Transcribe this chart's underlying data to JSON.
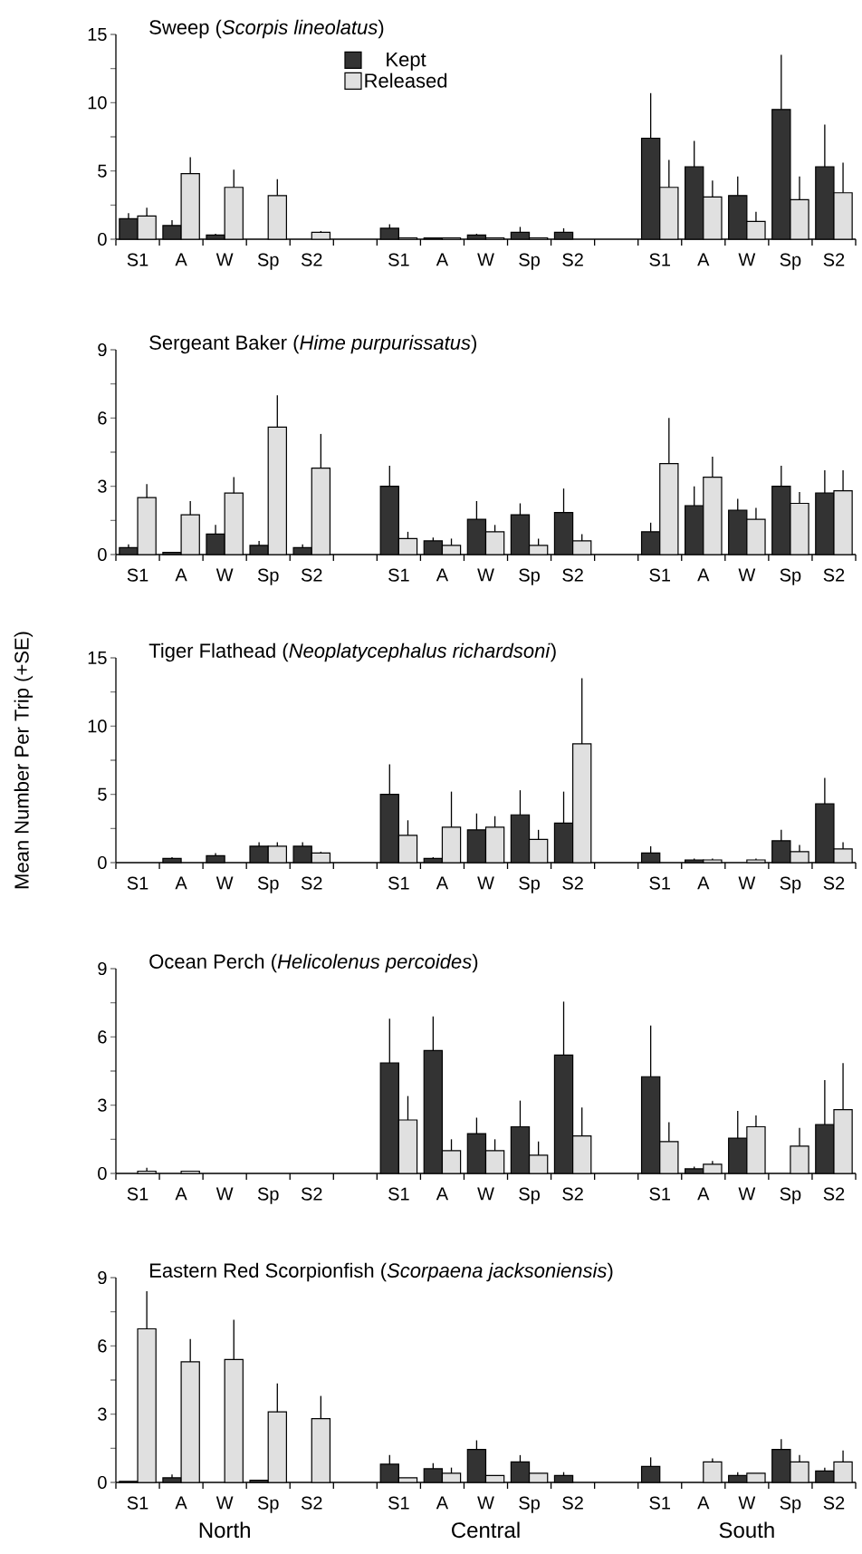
{
  "chart_data": [
    {
      "type": "bar",
      "title": "Sweep (*Scorpis lineolatus*)",
      "categories": [
        "S1",
        "A",
        "W",
        "Sp",
        "S2",
        null,
        "S1",
        "A",
        "W",
        "Sp",
        "S2",
        null,
        "S1",
        "A",
        "W",
        "Sp",
        "S2"
      ],
      "ylim": [
        0,
        15
      ],
      "yticks": [
        0,
        {
          "value": 2.5,
          "label": null
        },
        5,
        {
          "value": 7.5,
          "label": null
        },
        10,
        {
          "value": 12.5,
          "label": null
        },
        15
      ],
      "legend": "top",
      "grid": false,
      "series": [
        {
          "name": "Kept",
          "color": "#333333",
          "values": [
            1.5,
            1.0,
            0.3,
            0,
            0,
            null,
            0.8,
            0.1,
            0.3,
            0.5,
            0.5,
            null,
            7.4,
            5.3,
            3.2,
            9.5,
            5.3
          ],
          "errors": [
            [
              1.5,
              1.9
            ],
            [
              1.0,
              1.4
            ],
            [
              0.3,
              0.4
            ],
            null,
            null,
            null,
            [
              0.8,
              1.1
            ],
            null,
            [
              0.3,
              0.4
            ],
            [
              0.5,
              0.9
            ],
            [
              0.5,
              0.8
            ],
            null,
            [
              7.4,
              10.7
            ],
            [
              5.3,
              7.2
            ],
            [
              3.2,
              4.6
            ],
            [
              9.5,
              13.5
            ],
            [
              5.3,
              8.4
            ]
          ]
        },
        {
          "name": "Released",
          "color": "#e0e0e0",
          "values": [
            1.7,
            4.8,
            3.8,
            3.2,
            0.5,
            null,
            0.1,
            0.1,
            0.1,
            0.1,
            0,
            null,
            3.8,
            3.1,
            1.3,
            2.9,
            3.4
          ],
          "errors": [
            [
              1.7,
              2.3
            ],
            [
              4.8,
              6.0
            ],
            [
              3.8,
              5.1
            ],
            [
              3.2,
              4.4
            ],
            [
              0.5,
              0.6
            ],
            null,
            null,
            null,
            null,
            null,
            null,
            null,
            [
              3.8,
              5.8
            ],
            [
              3.1,
              4.3
            ],
            [
              1.3,
              2.0
            ],
            [
              2.9,
              4.6
            ],
            [
              3.4,
              5.6
            ]
          ]
        }
      ]
    },
    {
      "type": "bar",
      "title": "Sergeant Baker (*Hime purpurissatus*)",
      "categories": [
        "S1",
        "A",
        "W",
        "Sp",
        "S2",
        null,
        "S1",
        "A",
        "W",
        "Sp",
        "S2",
        null,
        "S1",
        "A",
        "W",
        "Sp",
        "S2"
      ],
      "ylim": [
        0,
        9
      ],
      "yticks": [
        0,
        {
          "value": 1.5,
          "label": null
        },
        3,
        {
          "value": 4.5,
          "label": null
        },
        6,
        {
          "value": 7.5,
          "label": null
        },
        9
      ],
      "grid": false,
      "series": [
        {
          "color": "#333333",
          "values": [
            0.3,
            0.1,
            0.9,
            0.4,
            0.3,
            null,
            3.0,
            0.6,
            1.55,
            1.75,
            1.85,
            null,
            1.0,
            2.15,
            1.95,
            3.0,
            2.7
          ],
          "errors": [
            [
              0.3,
              0.45
            ],
            null,
            [
              0.9,
              1.3
            ],
            [
              0.4,
              0.6
            ],
            [
              0.3,
              0.45
            ],
            null,
            [
              3.0,
              3.9
            ],
            [
              0.6,
              0.75
            ],
            [
              1.55,
              2.35
            ],
            [
              1.75,
              2.25
            ],
            [
              1.85,
              2.9
            ],
            null,
            [
              1.0,
              1.4
            ],
            [
              2.15,
              3.0
            ],
            [
              1.95,
              2.45
            ],
            [
              3.0,
              3.9
            ],
            [
              2.7,
              3.7
            ]
          ]
        },
        {
          "color": "#e0e0e0",
          "values": [
            2.5,
            1.75,
            2.7,
            5.6,
            3.8,
            null,
            0.7,
            0.4,
            1.0,
            0.4,
            0.6,
            null,
            4.0,
            3.4,
            1.55,
            2.25,
            2.8
          ],
          "errors": [
            [
              2.5,
              3.1
            ],
            [
              1.75,
              2.35
            ],
            [
              2.7,
              3.4
            ],
            [
              5.6,
              7.0
            ],
            [
              3.8,
              5.3
            ],
            null,
            [
              0.7,
              1.0
            ],
            [
              0.4,
              0.7
            ],
            [
              1.0,
              1.3
            ],
            [
              0.4,
              0.7
            ],
            [
              0.6,
              0.9
            ],
            null,
            [
              4.0,
              6.0
            ],
            [
              3.4,
              4.3
            ],
            [
              1.55,
              2.05
            ],
            [
              2.25,
              2.75
            ],
            [
              2.8,
              3.7
            ]
          ]
        }
      ]
    },
    {
      "type": "bar",
      "title": "Tiger Flathead (*Neoplatycephalus richardsoni*)",
      "ylabel": "Mean Number Per Trip (+SE)",
      "categories": [
        "S1",
        "A",
        "W",
        "Sp",
        "S2",
        null,
        "S1",
        "A",
        "W",
        "Sp",
        "S2",
        null,
        "S1",
        "A",
        "W",
        "Sp",
        "S2"
      ],
      "ylim": [
        0,
        15
      ],
      "yticks": [
        0,
        {
          "value": 2.5,
          "label": null
        },
        5,
        {
          "value": 7.5,
          "label": null
        },
        10,
        {
          "value": 12.5,
          "label": null
        },
        15
      ],
      "grid": false,
      "series": [
        {
          "color": "#333333",
          "values": [
            0,
            0.3,
            0.5,
            1.2,
            1.2,
            null,
            5.0,
            0.3,
            2.4,
            3.5,
            2.9,
            null,
            0.7,
            0.2,
            0,
            1.6,
            4.3
          ],
          "errors": [
            null,
            [
              0.3,
              0.4
            ],
            [
              0.5,
              0.7
            ],
            [
              1.2,
              1.5
            ],
            [
              1.2,
              1.5
            ],
            null,
            [
              5.0,
              7.2
            ],
            [
              0.3,
              0.4
            ],
            [
              2.4,
              3.6
            ],
            [
              3.5,
              5.3
            ],
            [
              2.9,
              5.2
            ],
            null,
            [
              0.7,
              1.2
            ],
            [
              0.2,
              0.3
            ],
            null,
            [
              1.6,
              2.4
            ],
            [
              4.3,
              6.2
            ]
          ]
        },
        {
          "color": "#e0e0e0",
          "values": [
            0,
            0,
            0,
            1.2,
            0.7,
            null,
            2.0,
            2.6,
            2.6,
            1.7,
            8.7,
            null,
            0,
            0.2,
            0.2,
            0.8,
            1.0
          ],
          "errors": [
            null,
            null,
            null,
            [
              1.2,
              1.5
            ],
            [
              0.7,
              0.8
            ],
            null,
            [
              2.0,
              3.1
            ],
            [
              2.6,
              5.2
            ],
            [
              2.6,
              3.4
            ],
            [
              1.7,
              2.4
            ],
            [
              8.7,
              13.5
            ],
            null,
            null,
            [
              0.2,
              0.3
            ],
            [
              0.2,
              0.3
            ],
            [
              0.8,
              1.3
            ],
            [
              1.0,
              1.5
            ]
          ]
        }
      ]
    },
    {
      "type": "bar",
      "title": "Ocean Perch (*Helicolenus percoides*)",
      "categories": [
        "S1",
        "A",
        "W",
        "Sp",
        "S2",
        null,
        "S1",
        "A",
        "W",
        "Sp",
        "S2",
        null,
        "S1",
        "A",
        "W",
        "Sp",
        "S2"
      ],
      "ylim": [
        0,
        9
      ],
      "yticks": [
        0,
        {
          "value": 1.5,
          "label": null
        },
        3,
        {
          "value": 4.5,
          "label": null
        },
        6,
        {
          "value": 7.5,
          "label": null
        },
        9
      ],
      "grid": false,
      "series": [
        {
          "color": "#333333",
          "values": [
            0,
            0,
            0,
            0,
            0,
            null,
            4.85,
            5.4,
            1.75,
            2.05,
            5.2,
            null,
            4.25,
            0.2,
            1.55,
            0,
            2.15
          ],
          "errors": [
            null,
            null,
            null,
            null,
            null,
            null,
            [
              4.85,
              6.8
            ],
            [
              5.4,
              6.9
            ],
            [
              1.75,
              2.45
            ],
            [
              2.05,
              3.2
            ],
            [
              5.2,
              7.55
            ],
            null,
            [
              4.25,
              6.5
            ],
            [
              0.2,
              0.3
            ],
            [
              1.55,
              2.75
            ],
            null,
            [
              2.15,
              4.1
            ]
          ]
        },
        {
          "color": "#e0e0e0",
          "values": [
            0.1,
            0.1,
            0,
            0,
            0,
            null,
            2.35,
            1.0,
            1.0,
            0.8,
            1.65,
            null,
            1.4,
            0.4,
            2.05,
            1.2,
            2.8
          ],
          "errors": [
            [
              0.1,
              0.25
            ],
            null,
            null,
            null,
            null,
            null,
            [
              2.35,
              3.4
            ],
            [
              1.0,
              1.5
            ],
            [
              1.0,
              1.5
            ],
            [
              0.8,
              1.4
            ],
            [
              1.65,
              2.9
            ],
            null,
            [
              1.4,
              2.25
            ],
            [
              0.4,
              0.55
            ],
            [
              2.05,
              2.55
            ],
            [
              1.2,
              2.0
            ],
            [
              2.8,
              4.85
            ]
          ]
        }
      ]
    },
    {
      "type": "bar",
      "title": "Eastern Red Scorpionfish (*Scorpaena jacksoniensis*)",
      "categories": [
        "S1",
        "A",
        "W",
        "Sp",
        "S2",
        null,
        "S1",
        "A",
        "W",
        "Sp",
        "S2",
        null,
        "S1",
        "A",
        "W",
        "Sp",
        "S2"
      ],
      "ylim": [
        0,
        9
      ],
      "yticks": [
        0,
        {
          "value": 1.5,
          "label": null
        },
        3,
        {
          "value": 4.5,
          "label": null
        },
        6,
        {
          "value": 7.5,
          "label": null
        },
        9
      ],
      "grid": false,
      "annotations": [
        "North",
        "Central",
        "South"
      ],
      "series": [
        {
          "color": "#333333",
          "values": [
            0.05,
            0.2,
            0,
            0.1,
            0,
            null,
            0.8,
            0.6,
            1.45,
            0.9,
            0.3,
            null,
            0.7,
            0,
            0.3,
            1.45,
            0.5
          ],
          "errors": [
            null,
            [
              0.2,
              0.35
            ],
            null,
            null,
            null,
            null,
            [
              0.8,
              1.2
            ],
            [
              0.6,
              0.85
            ],
            [
              1.45,
              1.85
            ],
            [
              0.9,
              1.2
            ],
            [
              0.3,
              0.45
            ],
            null,
            [
              0.7,
              1.1
            ],
            null,
            [
              0.3,
              0.45
            ],
            [
              1.45,
              1.9
            ],
            [
              0.5,
              0.65
            ]
          ]
        },
        {
          "color": "#e0e0e0",
          "values": [
            6.75,
            5.3,
            5.4,
            3.1,
            2.8,
            null,
            0.2,
            0.4,
            0.3,
            0.4,
            0,
            null,
            0,
            0.9,
            0.4,
            0.9,
            0.9
          ],
          "errors": [
            [
              6.75,
              8.4
            ],
            [
              5.3,
              6.3
            ],
            [
              5.4,
              7.15
            ],
            [
              3.1,
              4.35
            ],
            [
              2.8,
              3.8
            ],
            null,
            null,
            [
              0.4,
              0.65
            ],
            null,
            null,
            null,
            null,
            null,
            [
              0.9,
              1.05
            ],
            null,
            [
              0.9,
              1.2
            ],
            [
              0.9,
              1.4
            ]
          ]
        }
      ]
    }
  ]
}
